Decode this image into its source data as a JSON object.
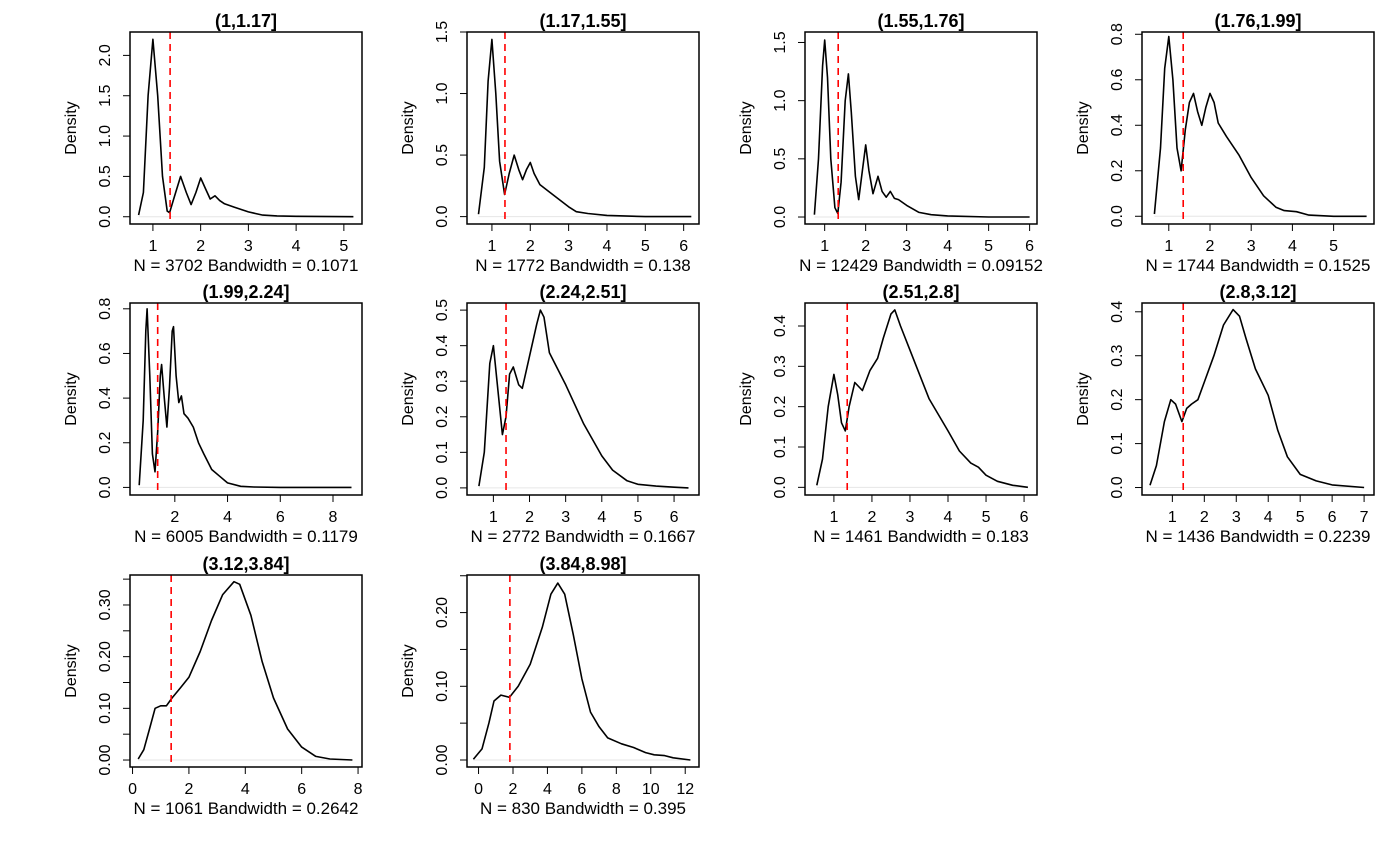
{
  "colors": {
    "curve": "#000000",
    "vline": "#ff0000",
    "zero_line": "#e6e6e6",
    "box": "#000000"
  },
  "chart_data": [
    {
      "type": "line",
      "title": "(1,1.17]",
      "subtitle": "N = 3702   Bandwidth = 0.1071",
      "ylabel": "Density",
      "xlim": [
        0.52,
        5.38
      ],
      "ylim": [
        -0.09,
        2.29
      ],
      "vline": 1.36,
      "xticks": [
        {
          "v": 1,
          "l": "1"
        },
        {
          "v": 2,
          "l": "2"
        },
        {
          "v": 3,
          "l": "3"
        },
        {
          "v": 4,
          "l": "4"
        },
        {
          "v": 5,
          "l": "5"
        }
      ],
      "yticks": [
        {
          "v": 0,
          "l": "0.0"
        },
        {
          "v": 0.5,
          "l": "0.5"
        },
        {
          "v": 1,
          "l": "1.0"
        },
        {
          "v": 1.5,
          "l": "1.5"
        },
        {
          "v": 2,
          "l": "2.0"
        }
      ],
      "x": [
        0.7,
        0.8,
        0.9,
        1.0,
        1.1,
        1.2,
        1.3,
        1.35,
        1.45,
        1.58,
        1.7,
        1.8,
        1.9,
        2.0,
        2.1,
        2.2,
        2.3,
        2.4,
        2.5,
        2.7,
        3.0,
        3.3,
        3.6,
        4.0,
        5.2
      ],
      "y": [
        0.02,
        0.3,
        1.5,
        2.2,
        1.5,
        0.5,
        0.07,
        0.05,
        0.25,
        0.5,
        0.3,
        0.15,
        0.3,
        0.48,
        0.35,
        0.22,
        0.26,
        0.2,
        0.16,
        0.12,
        0.06,
        0.02,
        0.01,
        0.005,
        0.0
      ]
    },
    {
      "type": "line",
      "title": "(1.17,1.55]",
      "subtitle": "N = 1772   Bandwidth = 0.138",
      "ylabel": "Density",
      "xlim": [
        0.35,
        6.4
      ],
      "ylim": [
        -0.06,
        1.5
      ],
      "vline": 1.34,
      "xticks": [
        {
          "v": 1,
          "l": "1"
        },
        {
          "v": 2,
          "l": "2"
        },
        {
          "v": 3,
          "l": "3"
        },
        {
          "v": 4,
          "l": "4"
        },
        {
          "v": 5,
          "l": "5"
        },
        {
          "v": 6,
          "l": "6"
        }
      ],
      "yticks": [
        {
          "v": 0,
          "l": "0.0"
        },
        {
          "v": 0.5,
          "l": "0.5"
        },
        {
          "v": 1,
          "l": "1.0"
        },
        {
          "v": 1.5,
          "l": "1.5"
        }
      ],
      "x": [
        0.65,
        0.8,
        0.9,
        1.0,
        1.1,
        1.2,
        1.33,
        1.45,
        1.58,
        1.7,
        1.8,
        1.9,
        2.0,
        2.1,
        2.25,
        2.5,
        2.75,
        3.0,
        3.2,
        3.5,
        4.0,
        5.0,
        6.2
      ],
      "y": [
        0.02,
        0.4,
        1.1,
        1.44,
        1.0,
        0.45,
        0.18,
        0.35,
        0.5,
        0.38,
        0.3,
        0.38,
        0.44,
        0.35,
        0.26,
        0.2,
        0.14,
        0.08,
        0.04,
        0.025,
        0.01,
        0.0,
        0.0
      ]
    },
    {
      "type": "line",
      "title": "(1.55,1.76]",
      "subtitle": "N = 12429   Bandwidth = 0.09152",
      "ylabel": "Density",
      "xlim": [
        0.52,
        6.18
      ],
      "ylim": [
        -0.06,
        1.59
      ],
      "vline": 1.33,
      "xticks": [
        {
          "v": 1,
          "l": "1"
        },
        {
          "v": 2,
          "l": "2"
        },
        {
          "v": 3,
          "l": "3"
        },
        {
          "v": 4,
          "l": "4"
        },
        {
          "v": 5,
          "l": "5"
        },
        {
          "v": 6,
          "l": "6"
        }
      ],
      "yticks": [
        {
          "v": 0,
          "l": "0.0"
        },
        {
          "v": 0.5,
          "l": "0.5"
        },
        {
          "v": 1,
          "l": "1.0"
        },
        {
          "v": 1.5,
          "l": "1.5"
        }
      ],
      "x": [
        0.75,
        0.85,
        0.95,
        1.0,
        1.07,
        1.15,
        1.25,
        1.32,
        1.4,
        1.5,
        1.58,
        1.65,
        1.75,
        1.83,
        1.92,
        2.0,
        2.08,
        2.18,
        2.3,
        2.4,
        2.5,
        2.6,
        2.7,
        2.8,
        3.0,
        3.3,
        3.6,
        4.0,
        5.0,
        6.0
      ],
      "y": [
        0.02,
        0.5,
        1.3,
        1.52,
        1.2,
        0.5,
        0.08,
        0.03,
        0.3,
        1.0,
        1.23,
        0.9,
        0.35,
        0.15,
        0.4,
        0.62,
        0.4,
        0.2,
        0.35,
        0.22,
        0.17,
        0.22,
        0.16,
        0.15,
        0.1,
        0.04,
        0.02,
        0.01,
        0.0,
        0.0
      ]
    },
    {
      "type": "line",
      "title": "(1.76,1.99]",
      "subtitle": "N = 1744   Bandwidth = 0.1525",
      "ylabel": "Density",
      "xlim": [
        0.35,
        5.98
      ],
      "ylim": [
        -0.034,
        0.81
      ],
      "vline": 1.35,
      "xticks": [
        {
          "v": 1,
          "l": "1"
        },
        {
          "v": 2,
          "l": "2"
        },
        {
          "v": 3,
          "l": "3"
        },
        {
          "v": 4,
          "l": "4"
        },
        {
          "v": 5,
          "l": "5"
        }
      ],
      "yticks": [
        {
          "v": 0,
          "l": "0.0"
        },
        {
          "v": 0.2,
          "l": "0.2"
        },
        {
          "v": 0.4,
          "l": "0.4"
        },
        {
          "v": 0.6,
          "l": "0.6"
        },
        {
          "v": 0.8,
          "l": "0.8"
        }
      ],
      "x": [
        0.65,
        0.8,
        0.9,
        1.0,
        1.1,
        1.2,
        1.3,
        1.4,
        1.5,
        1.6,
        1.7,
        1.8,
        1.9,
        2.0,
        2.1,
        2.2,
        2.4,
        2.7,
        3.0,
        3.3,
        3.6,
        3.8,
        4.1,
        4.4,
        5.0,
        5.8
      ],
      "y": [
        0.01,
        0.3,
        0.65,
        0.79,
        0.6,
        0.3,
        0.2,
        0.38,
        0.5,
        0.54,
        0.46,
        0.4,
        0.48,
        0.54,
        0.5,
        0.41,
        0.35,
        0.27,
        0.17,
        0.09,
        0.04,
        0.025,
        0.02,
        0.005,
        0.0,
        0.0
      ]
    },
    {
      "type": "line",
      "title": "(1.99,2.24]",
      "subtitle": "N = 6005   Bandwidth = 0.1179",
      "ylabel": "Density",
      "xlim": [
        0.3,
        9.1
      ],
      "ylim": [
        -0.034,
        0.826
      ],
      "vline": 1.35,
      "xticks": [
        {
          "v": 2,
          "l": "2"
        },
        {
          "v": 4,
          "l": "4"
        },
        {
          "v": 6,
          "l": "6"
        },
        {
          "v": 8,
          "l": "8"
        }
      ],
      "yticks": [
        {
          "v": 0,
          "l": "0.0"
        },
        {
          "v": 0.2,
          "l": "0.2"
        },
        {
          "v": 0.4,
          "l": "0.4"
        },
        {
          "v": 0.6,
          "l": "0.6"
        },
        {
          "v": 0.8,
          "l": "0.8"
        }
      ],
      "x": [
        0.65,
        0.8,
        0.9,
        0.95,
        1.05,
        1.15,
        1.25,
        1.35,
        1.45,
        1.5,
        1.6,
        1.7,
        1.8,
        1.9,
        1.95,
        2.05,
        2.15,
        2.25,
        2.35,
        2.5,
        2.7,
        2.9,
        3.1,
        3.4,
        3.7,
        4.0,
        4.5,
        5.0,
        6.0,
        8.7
      ],
      "y": [
        0.01,
        0.3,
        0.7,
        0.8,
        0.5,
        0.15,
        0.07,
        0.25,
        0.5,
        0.55,
        0.4,
        0.27,
        0.45,
        0.7,
        0.72,
        0.5,
        0.38,
        0.41,
        0.33,
        0.31,
        0.27,
        0.2,
        0.15,
        0.08,
        0.05,
        0.02,
        0.005,
        0.002,
        0.0,
        0.0
      ]
    },
    {
      "type": "line",
      "title": "(2.24,2.51]",
      "subtitle": "N = 2772   Bandwidth = 0.1667",
      "ylabel": "Density",
      "xlim": [
        0.27,
        6.69
      ],
      "ylim": [
        -0.02,
        0.52
      ],
      "vline": 1.35,
      "xticks": [
        {
          "v": 1,
          "l": "1"
        },
        {
          "v": 2,
          "l": "2"
        },
        {
          "v": 3,
          "l": "3"
        },
        {
          "v": 4,
          "l": "4"
        },
        {
          "v": 5,
          "l": "5"
        },
        {
          "v": 6,
          "l": "6"
        }
      ],
      "yticks": [
        {
          "v": 0,
          "l": "0.0"
        },
        {
          "v": 0.1,
          "l": "0.1"
        },
        {
          "v": 0.2,
          "l": "0.2"
        },
        {
          "v": 0.3,
          "l": "0.3"
        },
        {
          "v": 0.4,
          "l": "0.4"
        },
        {
          "v": 0.5,
          "l": "0.5"
        }
      ],
      "x": [
        0.6,
        0.75,
        0.9,
        1.0,
        1.1,
        1.25,
        1.35,
        1.45,
        1.55,
        1.7,
        1.8,
        2.0,
        2.2,
        2.3,
        2.4,
        2.55,
        2.7,
        3.0,
        3.5,
        4.0,
        4.3,
        4.7,
        5.0,
        5.5,
        6.0,
        6.4
      ],
      "y": [
        0.005,
        0.1,
        0.35,
        0.4,
        0.3,
        0.15,
        0.2,
        0.32,
        0.34,
        0.29,
        0.28,
        0.37,
        0.46,
        0.5,
        0.48,
        0.38,
        0.35,
        0.29,
        0.18,
        0.09,
        0.05,
        0.02,
        0.01,
        0.005,
        0.002,
        0.0
      ]
    },
    {
      "type": "line",
      "title": "(2.51,2.8]",
      "subtitle": "N = 1461   Bandwidth = 0.183",
      "ylabel": "Density",
      "xlim": [
        0.24,
        6.34
      ],
      "ylim": [
        -0.019,
        0.457
      ],
      "vline": 1.35,
      "xticks": [
        {
          "v": 1,
          "l": "1"
        },
        {
          "v": 2,
          "l": "2"
        },
        {
          "v": 3,
          "l": "3"
        },
        {
          "v": 4,
          "l": "4"
        },
        {
          "v": 5,
          "l": "5"
        },
        {
          "v": 6,
          "l": "6"
        }
      ],
      "yticks": [
        {
          "v": 0,
          "l": "0.0"
        },
        {
          "v": 0.1,
          "l": "0.1"
        },
        {
          "v": 0.2,
          "l": "0.2"
        },
        {
          "v": 0.3,
          "l": "0.3"
        },
        {
          "v": 0.4,
          "l": "0.4"
        }
      ],
      "x": [
        0.55,
        0.7,
        0.85,
        1.0,
        1.1,
        1.2,
        1.3,
        1.4,
        1.55,
        1.75,
        1.95,
        2.15,
        2.3,
        2.5,
        2.6,
        2.75,
        3.0,
        3.5,
        4.0,
        4.3,
        4.6,
        4.8,
        5.0,
        5.3,
        5.7,
        6.1
      ],
      "y": [
        0.005,
        0.07,
        0.2,
        0.28,
        0.23,
        0.16,
        0.14,
        0.2,
        0.26,
        0.24,
        0.29,
        0.32,
        0.37,
        0.43,
        0.44,
        0.4,
        0.34,
        0.22,
        0.14,
        0.09,
        0.06,
        0.05,
        0.03,
        0.015,
        0.005,
        0.0
      ]
    },
    {
      "type": "line",
      "title": "(2.8,3.12]",
      "subtitle": "N = 1436   Bandwidth = 0.2239",
      "ylabel": "Density",
      "xlim": [
        0.05,
        7.31
      ],
      "ylim": [
        -0.017,
        0.42
      ],
      "vline": 1.34,
      "xticks": [
        {
          "v": 1,
          "l": "1"
        },
        {
          "v": 2,
          "l": "2"
        },
        {
          "v": 3,
          "l": "3"
        },
        {
          "v": 4,
          "l": "4"
        },
        {
          "v": 5,
          "l": "5"
        },
        {
          "v": 6,
          "l": "6"
        },
        {
          "v": 7,
          "l": "7"
        }
      ],
      "yticks": [
        {
          "v": 0,
          "l": "0.0"
        },
        {
          "v": 0.1,
          "l": "0.1"
        },
        {
          "v": 0.2,
          "l": "0.2"
        },
        {
          "v": 0.3,
          "l": "0.3"
        },
        {
          "v": 0.4,
          "l": "0.4"
        }
      ],
      "x": [
        0.3,
        0.5,
        0.75,
        0.95,
        1.1,
        1.3,
        1.45,
        1.6,
        1.8,
        2.0,
        2.3,
        2.6,
        2.9,
        3.1,
        3.3,
        3.6,
        4.0,
        4.3,
        4.6,
        5.0,
        5.5,
        6.0,
        7.0
      ],
      "y": [
        0.005,
        0.05,
        0.15,
        0.2,
        0.19,
        0.15,
        0.18,
        0.19,
        0.2,
        0.24,
        0.3,
        0.37,
        0.405,
        0.39,
        0.34,
        0.27,
        0.21,
        0.13,
        0.07,
        0.03,
        0.015,
        0.006,
        0.0
      ]
    },
    {
      "type": "line",
      "title": "(3.12,3.84]",
      "subtitle": "N = 1061   Bandwidth = 0.2642",
      "ylabel": "Density",
      "xlim": [
        -0.09,
        8.14
      ],
      "ylim": [
        -0.0135,
        0.358
      ],
      "vline": 1.37,
      "xticks": [
        {
          "v": 0,
          "l": "0"
        },
        {
          "v": 2,
          "l": "2"
        },
        {
          "v": 4,
          "l": "4"
        },
        {
          "v": 6,
          "l": "6"
        },
        {
          "v": 8,
          "l": "8"
        }
      ],
      "yticks": [
        {
          "v": 0,
          "l": "0.00"
        },
        {
          "v": 0.05,
          "l": ""
        },
        {
          "v": 0.1,
          "l": "0.10"
        },
        {
          "v": 0.15,
          "l": ""
        },
        {
          "v": 0.2,
          "l": "0.20"
        },
        {
          "v": 0.25,
          "l": ""
        },
        {
          "v": 0.3,
          "l": "0.30"
        },
        {
          "v": 0.35,
          "l": ""
        }
      ],
      "x": [
        0.2,
        0.4,
        0.6,
        0.8,
        1.0,
        1.2,
        1.4,
        1.7,
        2.0,
        2.4,
        2.8,
        3.2,
        3.6,
        3.8,
        4.2,
        4.6,
        5.0,
        5.5,
        6.0,
        6.5,
        7.0,
        7.8
      ],
      "y": [
        0.002,
        0.02,
        0.06,
        0.1,
        0.105,
        0.105,
        0.12,
        0.14,
        0.16,
        0.21,
        0.27,
        0.32,
        0.345,
        0.34,
        0.28,
        0.19,
        0.12,
        0.06,
        0.025,
        0.007,
        0.002,
        0.0
      ]
    },
    {
      "type": "line",
      "title": "(3.84,8.98]",
      "subtitle": "N = 830   Bandwidth = 0.395",
      "ylabel": "Density",
      "xlim": [
        -0.67,
        12.8
      ],
      "ylim": [
        -0.0095,
        0.251
      ],
      "vline": 1.82,
      "xticks": [
        {
          "v": 0,
          "l": "0"
        },
        {
          "v": 2,
          "l": "2"
        },
        {
          "v": 4,
          "l": "4"
        },
        {
          "v": 6,
          "l": "6"
        },
        {
          "v": 8,
          "l": "8"
        },
        {
          "v": 10,
          "l": "10"
        },
        {
          "v": 12,
          "l": "12"
        }
      ],
      "yticks": [
        {
          "v": 0,
          "l": "0.00"
        },
        {
          "v": 0.05,
          "l": ""
        },
        {
          "v": 0.1,
          "l": "0.10"
        },
        {
          "v": 0.15,
          "l": ""
        },
        {
          "v": 0.2,
          "l": "0.20"
        },
        {
          "v": 0.25,
          "l": ""
        }
      ],
      "x": [
        -0.3,
        0.2,
        0.6,
        0.9,
        1.3,
        1.8,
        2.3,
        3.0,
        3.7,
        4.2,
        4.6,
        5.0,
        5.5,
        6.0,
        6.5,
        7.0,
        7.5,
        8.3,
        9.0,
        9.7,
        10.2,
        10.8,
        11.3,
        12.3
      ],
      "y": [
        0.001,
        0.015,
        0.05,
        0.08,
        0.088,
        0.085,
        0.1,
        0.13,
        0.18,
        0.225,
        0.24,
        0.225,
        0.17,
        0.11,
        0.065,
        0.045,
        0.03,
        0.022,
        0.017,
        0.01,
        0.007,
        0.006,
        0.003,
        0.0
      ]
    }
  ]
}
